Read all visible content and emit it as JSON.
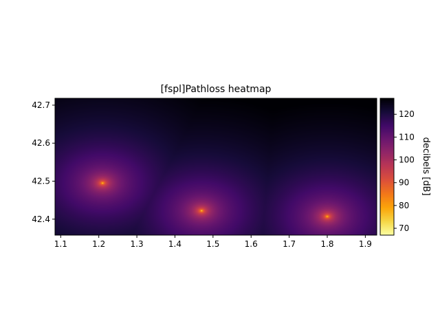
{
  "chart_data": {
    "type": "heatmap",
    "title": "[fspl]Pathloss heatmap",
    "xlabel": "",
    "ylabel": "",
    "xlim": [
      1.085,
      1.93
    ],
    "ylim": [
      42.358,
      42.718
    ],
    "x_ticks": [
      "1.1",
      "1.2",
      "1.3",
      "1.4",
      "1.5",
      "1.6",
      "1.7",
      "1.8",
      "1.9"
    ],
    "y_ticks": [
      "42.4",
      "42.5",
      "42.6",
      "42.7"
    ],
    "colormap": "inferno_r",
    "colorbar": {
      "label": "decibels [dB]",
      "range": [
        67,
        127
      ],
      "ticks": [
        "70",
        "80",
        "90",
        "100",
        "110",
        "120"
      ]
    },
    "sources": [
      {
        "x": 1.21,
        "y": 42.495
      },
      {
        "x": 1.47,
        "y": 42.422
      },
      {
        "x": 1.8,
        "y": 42.407
      }
    ],
    "grid": false
  }
}
